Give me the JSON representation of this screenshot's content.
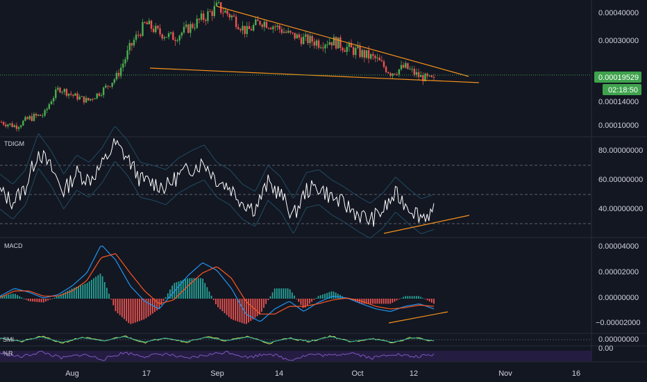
{
  "colors": {
    "background": "#131722",
    "separator": "#2a2e39",
    "up": "#26a69a",
    "candle_up": "#4caf50",
    "candle_down": "#ef5350",
    "trendline": "#f7931a",
    "price_badge": "#3fa34d",
    "tdigm_line": "#ffffff",
    "band": "#1f4d63",
    "macd_line": "#2196f3",
    "signal_line": "#ff5722",
    "hist_up": "#26a69a",
    "hist_down": "#ef5350",
    "smi_line": "#c8e64b",
    "smi_signal": "#26a69a",
    "wpr_line": "#7e57c2",
    "wpr_band": "#2a1f4a"
  },
  "price_pane": {
    "yticks": [
      "0.00040000",
      "0.00030000",
      "0.00014000",
      "0.00010000"
    ],
    "current_price": "0.00019529",
    "countdown": "02:18:50"
  },
  "tdigm_pane": {
    "title": "TDIGM",
    "yticks": [
      "80.00000000",
      "60.00000000",
      "40.00000000"
    ]
  },
  "macd_pane": {
    "title": "MACD",
    "yticks": [
      "0.00004000",
      "0.00002000",
      "0.00000000",
      "−0.00002000"
    ]
  },
  "smi_pane": {
    "title": "SMI",
    "yticks": [
      "0.00000000"
    ]
  },
  "wpr_pane": {
    "title": "%R",
    "yticks": [
      "0.00"
    ]
  },
  "chart_data": [
    {
      "type": "candlestick",
      "title": "",
      "series": [
        {
          "name": "",
          "values": [
            0.000105,
            9.8e-05,
            0.000112,
            0.000118,
            0.000175,
            0.000155,
            0.000142,
            0.000168,
            0.000205,
            0.000285,
            0.00036,
            0.000325,
            0.00031,
            0.000345,
            0.00038,
            0.00042,
            0.000385,
            0.00033,
            0.00037,
            0.00035,
            0.00032,
            0.000305,
            0.000295,
            0.0003,
            0.00028,
            0.000265,
            0.00025,
            0.000215,
            0.00023,
            0.000205,
            0.000195
          ]
        }
      ],
      "trendlines": [
        {
          "from": [
            "Sep",
            0.00042
          ],
          "to": [
            "Oct",
            0.00021
          ]
        },
        {
          "from": [
            "17",
            0.000225
          ],
          "to": [
            "Oct",
            0.000185
          ]
        }
      ],
      "current_price": 0.00019529,
      "xticks": [
        "Aug",
        "17",
        "Sep",
        "14",
        "Oct",
        "12",
        "Nov",
        "16"
      ]
    },
    {
      "type": "line",
      "title": "TDIGM",
      "levels": [
        70,
        50,
        30
      ],
      "series": [
        {
          "name": "",
          "values": [
            52,
            45,
            55,
            80,
            68,
            52,
            65,
            60,
            70,
            85,
            75,
            60,
            58,
            55,
            63,
            68,
            72,
            60,
            55,
            45,
            40,
            58,
            50,
            35,
            53,
            55,
            48,
            43,
            37,
            32,
            39,
            50,
            42,
            35,
            38
          ]
        }
      ]
    },
    {
      "type": "line",
      "title": "MACD",
      "series": [
        {
          "name": "",
          "values": [
            2e-06,
            8e-06,
            5e-06,
            5e-07,
            3e-06,
            1e-05,
            2e-05,
            4.2e-05,
            3e-05,
            1e-05,
            -2e-06,
            -8e-06,
            5e-06,
            1.8e-05,
            2.8e-05,
            2.2e-05,
            8e-06,
            -1.2e-05,
            -1.8e-05,
            -8e-06,
            -2e-06,
            -1e-05,
            -3e-06,
            2e-06,
            5e-07,
            -4e-06,
            -8e-06,
            -1e-05,
            -6e-06,
            -4e-06,
            -8e-06
          ]
        },
        {
          "name": "",
          "values": [
            1e-06,
            6e-06,
            6e-06,
            2e-06,
            2e-06,
            6e-06,
            1.4e-05,
            3.2e-05,
            3.5e-05,
            2e-05,
            6e-06,
            -4e-06,
            -1e-06,
            1e-05,
            2e-05,
            2.5e-05,
            1.6e-05,
            -2e-06,
            -1.2e-05,
            -1.2e-05,
            -6e-06,
            -6e-06,
            -4e-06,
            -1e-06,
            5e-07,
            -2e-06,
            -6e-06,
            -8e-06,
            -7e-06,
            -5e-06,
            -6e-06
          ]
        }
      ],
      "trendlines": [
        {
          "from": [
            "Oct",
            -1.7e-05
          ],
          "to": [
            "12",
            -1e-05
          ]
        }
      ]
    },
    {
      "type": "line",
      "title": "SMI",
      "series": [
        {
          "name": "",
          "values": [
            0.5,
            -0.5,
            0.8,
            -0.8,
            0.6,
            -0.4,
            0.9,
            -0.7,
            0.5,
            -0.6,
            0.7,
            -0.3,
            0.8,
            -0.9,
            0.4,
            -0.5,
            0.9,
            -0.6,
            0.3,
            -0.8,
            0.6,
            -0.4
          ]
        }
      ]
    },
    {
      "type": "line",
      "title": "%R",
      "series": [
        {
          "name": "",
          "values": [
            -30,
            -60,
            -20,
            -70,
            -40,
            -80,
            -25,
            -55,
            -35,
            -75,
            -45,
            -20,
            -65,
            -30,
            -85,
            -40,
            -50,
            -25,
            -70,
            -35,
            -60,
            -45
          ]
        }
      ]
    }
  ]
}
